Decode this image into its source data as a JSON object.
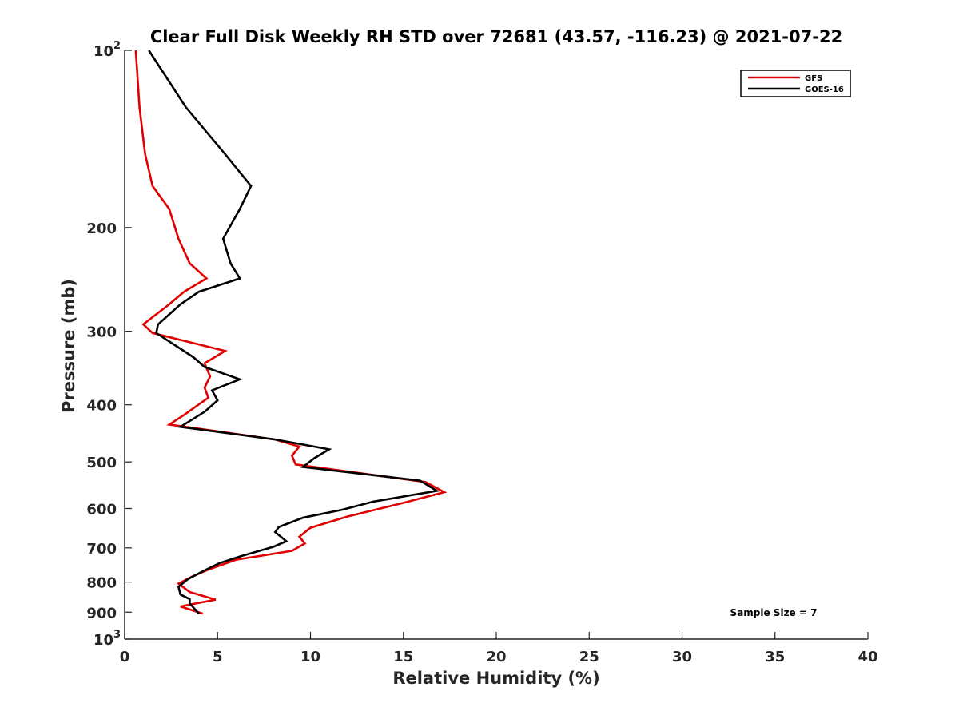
{
  "chart_data": {
    "type": "line",
    "title": "Clear Full Disk Weekly RH STD over 72681 (43.57, -116.23) @ 2021-07-22",
    "xlabel": "Relative Humidity (%)",
    "ylabel": "Pressure (mb)",
    "xlim": [
      0,
      40
    ],
    "ylim": [
      100,
      1000
    ],
    "y_scale": "log",
    "y_reversed": true,
    "grid": false,
    "legend_position": "top-right",
    "x_ticks": [
      0,
      5,
      10,
      15,
      20,
      25,
      30,
      35,
      40
    ],
    "y_ticks": [
      {
        "value": 100,
        "label": "10",
        "exp": "2"
      },
      {
        "value": 200,
        "label": "200"
      },
      {
        "value": 300,
        "label": "300"
      },
      {
        "value": 400,
        "label": "400"
      },
      {
        "value": 500,
        "label": "500"
      },
      {
        "value": 600,
        "label": "600"
      },
      {
        "value": 700,
        "label": "700"
      },
      {
        "value": 800,
        "label": "800"
      },
      {
        "value": 900,
        "label": "900"
      },
      {
        "value": 1000,
        "label": "10",
        "exp": "3"
      }
    ],
    "annotation": "Sample Size = 7",
    "series": [
      {
        "name": "GFS",
        "color": "#e00000",
        "points": [
          [
            0.6,
            100
          ],
          [
            0.8,
            125
          ],
          [
            1.1,
            150
          ],
          [
            1.5,
            170
          ],
          [
            2.4,
            186
          ],
          [
            2.9,
            209
          ],
          [
            3.5,
            230
          ],
          [
            4.4,
            244
          ],
          [
            3.2,
            257
          ],
          [
            2.4,
            270
          ],
          [
            1.0,
            292
          ],
          [
            1.5,
            302
          ],
          [
            5.4,
            324
          ],
          [
            4.3,
            340
          ],
          [
            4.6,
            358
          ],
          [
            4.3,
            374
          ],
          [
            4.5,
            389
          ],
          [
            3.2,
            416
          ],
          [
            2.4,
            432
          ],
          [
            8.1,
            458
          ],
          [
            9.4,
            471
          ],
          [
            9.0,
            488
          ],
          [
            9.2,
            505
          ],
          [
            16.2,
            541
          ],
          [
            17.2,
            563
          ],
          [
            14.8,
            589
          ],
          [
            12.0,
            619
          ],
          [
            10.0,
            647
          ],
          [
            9.4,
            670
          ],
          [
            9.7,
            688
          ],
          [
            9.0,
            708
          ],
          [
            6.0,
            733
          ],
          [
            4.5,
            762
          ],
          [
            3.6,
            784
          ],
          [
            2.9,
            805
          ],
          [
            3.5,
            832
          ],
          [
            4.9,
            857
          ],
          [
            3.0,
            880
          ],
          [
            4.2,
            905
          ]
        ]
      },
      {
        "name": "GOES-16",
        "color": "#000000",
        "points": [
          [
            1.3,
            100
          ],
          [
            3.3,
            125
          ],
          [
            5.4,
            150
          ],
          [
            6.8,
            170
          ],
          [
            6.2,
            186
          ],
          [
            5.3,
            209
          ],
          [
            5.7,
            230
          ],
          [
            6.2,
            244
          ],
          [
            4.0,
            257
          ],
          [
            3.0,
            270
          ],
          [
            1.8,
            292
          ],
          [
            1.7,
            302
          ],
          [
            3.7,
            332
          ],
          [
            4.3,
            345
          ],
          [
            6.2,
            362
          ],
          [
            4.7,
            378
          ],
          [
            5.0,
            393
          ],
          [
            4.3,
            411
          ],
          [
            3.0,
            436
          ],
          [
            8.1,
            458
          ],
          [
            11.0,
            476
          ],
          [
            10.2,
            493
          ],
          [
            9.6,
            510
          ],
          [
            15.9,
            538
          ],
          [
            16.8,
            560
          ],
          [
            13.4,
            584
          ],
          [
            11.7,
            603
          ],
          [
            9.6,
            622
          ],
          [
            8.3,
            645
          ],
          [
            8.1,
            658
          ],
          [
            8.7,
            682
          ],
          [
            8.0,
            697
          ],
          [
            6.2,
            724
          ],
          [
            5.1,
            743
          ],
          [
            4.2,
            767
          ],
          [
            3.4,
            791
          ],
          [
            2.9,
            815
          ],
          [
            3.0,
            840
          ],
          [
            3.5,
            855
          ],
          [
            3.5,
            870
          ],
          [
            4.0,
            905
          ]
        ]
      }
    ]
  }
}
